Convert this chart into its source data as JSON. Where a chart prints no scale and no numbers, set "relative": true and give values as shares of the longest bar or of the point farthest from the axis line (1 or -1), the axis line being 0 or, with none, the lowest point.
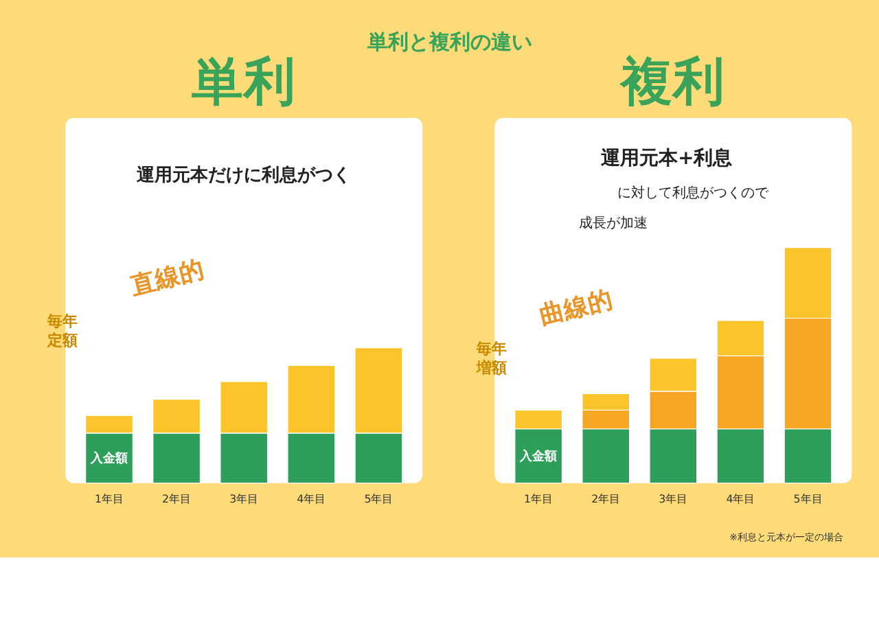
{
  "chart_data": [
    {
      "type": "bar",
      "title": "単利",
      "relative": true,
      "stacked": true,
      "categories": [
        "1年目",
        "2年目",
        "3年目",
        "4年目",
        "5年目"
      ],
      "series": [
        {
          "name": "入金額",
          "color": "#2e9e5b",
          "values": [
            0.37,
            0.37,
            0.37,
            0.37,
            0.37
          ]
        },
        {
          "color": "#fbc42a",
          "values": [
            0.13,
            0.25,
            0.38,
            0.5,
            0.63
          ]
        }
      ],
      "annotations": [
        "単利と複利の違い",
        "運用元本だけに利息がつく",
        "直線的",
        "毎年定額"
      ]
    },
    {
      "type": "bar",
      "title": "複利",
      "relative": true,
      "stacked": true,
      "categories": [
        "1年目",
        "2年目",
        "3年目",
        "4年目",
        "5年目"
      ],
      "series": [
        {
          "name": "入金額",
          "color": "#2e9e5b",
          "values": [
            0.23,
            0.23,
            0.23,
            0.23,
            0.23
          ]
        },
        {
          "color": "#f6a623",
          "values": [
            null,
            0.08,
            0.16,
            0.31,
            0.47
          ]
        },
        {
          "color": "#fbc42a",
          "values": [
            0.08,
            0.07,
            0.14,
            0.15,
            0.3
          ]
        }
      ],
      "annotations": [
        "運用元本+利息",
        "に対して利息がつくので",
        "成長が加速",
        "曲線的",
        "毎年増額",
        "※利息と元本が一定の場合"
      ]
    }
  ]
}
